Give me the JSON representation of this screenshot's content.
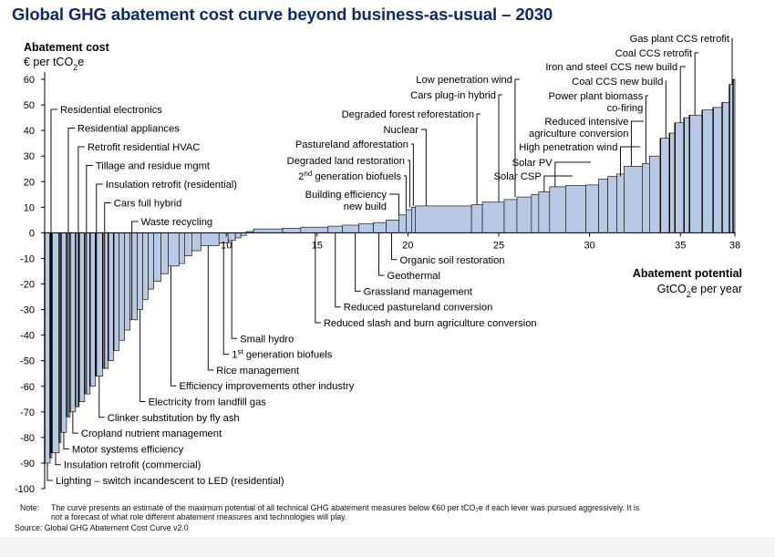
{
  "title": "Global GHG abatement cost curve beyond business-as-usual – 2030",
  "note_label": "Note:",
  "note_text": "The curve presents an estimate of the maximum potential of all technical GHG abatement measures below €60 per tCO₂e if each lever was pursued aggressively. It is not a forecast of what role different abatement measures and technologies will play.",
  "source": "Source: Global GHG Abatement Cost Curve v2.0",
  "colors": {
    "title": "#0d2b6b",
    "bar_fill": "#b8c9e6",
    "bar_stroke": "#1a1a1a"
  },
  "chart_data": {
    "type": "bar",
    "variant": "marginal-abatement-cost-curve",
    "ylabel_line1": "Abatement cost",
    "ylabel_line2_prefix": "€ per tCO",
    "ylabel_line2_sub": "2",
    "ylabel_line2_suffix": "e",
    "xlabel_line1": "Abatement potential",
    "xlabel_line2_prefix": "GtCO",
    "xlabel_line2_sub": "2",
    "xlabel_line2_suffix": "e per year",
    "ylim": [
      -100,
      60
    ],
    "xlim": [
      0,
      38
    ],
    "yticks": [
      60,
      50,
      40,
      30,
      20,
      10,
      0,
      -10,
      -20,
      -30,
      -40,
      -50,
      -60,
      -70,
      -80,
      -90,
      -100
    ],
    "xticks": [
      10,
      15,
      20,
      25,
      30,
      35,
      38
    ],
    "bars": [
      {
        "x0": 0.0,
        "x1": 0.3,
        "cost": -90
      },
      {
        "x0": 0.3,
        "x1": 0.4,
        "cost": -88
      },
      {
        "x0": 0.4,
        "x1": 0.8,
        "cost": -86
      },
      {
        "x0": 0.8,
        "x1": 0.9,
        "cost": -82
      },
      {
        "x0": 0.9,
        "x1": 1.2,
        "cost": -78
      },
      {
        "x0": 1.2,
        "x1": 1.4,
        "cost": -72
      },
      {
        "x0": 1.4,
        "x1": 1.7,
        "cost": -70
      },
      {
        "x0": 1.7,
        "x1": 1.9,
        "cost": -68
      },
      {
        "x0": 1.9,
        "x1": 2.2,
        "cost": -66
      },
      {
        "x0": 2.2,
        "x1": 2.5,
        "cost": -63
      },
      {
        "x0": 2.5,
        "x1": 2.8,
        "cost": -60
      },
      {
        "x0": 2.8,
        "x1": 3.2,
        "cost": -56
      },
      {
        "x0": 3.2,
        "x1": 3.5,
        "cost": -53
      },
      {
        "x0": 3.5,
        "x1": 3.8,
        "cost": -50
      },
      {
        "x0": 3.8,
        "x1": 4.1,
        "cost": -46
      },
      {
        "x0": 4.1,
        "x1": 4.4,
        "cost": -42
      },
      {
        "x0": 4.4,
        "x1": 4.7,
        "cost": -38
      },
      {
        "x0": 4.7,
        "x1": 5.1,
        "cost": -34
      },
      {
        "x0": 5.1,
        "x1": 5.4,
        "cost": -30
      },
      {
        "x0": 5.4,
        "x1": 5.7,
        "cost": -26
      },
      {
        "x0": 5.7,
        "x1": 6.0,
        "cost": -22
      },
      {
        "x0": 6.0,
        "x1": 6.4,
        "cost": -19
      },
      {
        "x0": 6.4,
        "x1": 6.8,
        "cost": -16
      },
      {
        "x0": 6.8,
        "x1": 7.4,
        "cost": -13
      },
      {
        "x0": 7.4,
        "x1": 7.7,
        "cost": -12
      },
      {
        "x0": 7.7,
        "x1": 8.1,
        "cost": -9
      },
      {
        "x0": 8.1,
        "x1": 8.6,
        "cost": -7
      },
      {
        "x0": 8.6,
        "x1": 9.6,
        "cost": -5
      },
      {
        "x0": 9.6,
        "x1": 10.1,
        "cost": -4
      },
      {
        "x0": 10.1,
        "x1": 10.5,
        "cost": -3
      },
      {
        "x0": 10.5,
        "x1": 10.8,
        "cost": -2
      },
      {
        "x0": 10.8,
        "x1": 11.1,
        "cost": -1
      },
      {
        "x0": 11.1,
        "x1": 11.5,
        "cost": 0.5
      },
      {
        "x0": 11.5,
        "x1": 13.1,
        "cost": 1.5
      },
      {
        "x0": 13.1,
        "x1": 14.1,
        "cost": 1.8
      },
      {
        "x0": 14.1,
        "x1": 15.6,
        "cost": 2.2
      },
      {
        "x0": 15.6,
        "x1": 16.4,
        "cost": 2.6
      },
      {
        "x0": 16.4,
        "x1": 17.3,
        "cost": 3
      },
      {
        "x0": 17.3,
        "x1": 18.1,
        "cost": 3.5
      },
      {
        "x0": 18.1,
        "x1": 18.8,
        "cost": 4
      },
      {
        "x0": 18.8,
        "x1": 19.5,
        "cost": 5
      },
      {
        "x0": 19.5,
        "x1": 19.9,
        "cost": 7
      },
      {
        "x0": 19.9,
        "x1": 20.2,
        "cost": 9
      },
      {
        "x0": 20.2,
        "x1": 20.4,
        "cost": 10
      },
      {
        "x0": 20.4,
        "x1": 23.5,
        "cost": 10.5
      },
      {
        "x0": 23.5,
        "x1": 24.1,
        "cost": 11
      },
      {
        "x0": 24.1,
        "x1": 25.3,
        "cost": 12
      },
      {
        "x0": 25.3,
        "x1": 26.0,
        "cost": 13
      },
      {
        "x0": 26.0,
        "x1": 26.8,
        "cost": 14
      },
      {
        "x0": 26.8,
        "x1": 27.2,
        "cost": 15
      },
      {
        "x0": 27.2,
        "x1": 27.8,
        "cost": 16
      },
      {
        "x0": 27.8,
        "x1": 28.7,
        "cost": 18
      },
      {
        "x0": 28.7,
        "x1": 29.8,
        "cost": 18.5
      },
      {
        "x0": 29.8,
        "x1": 30.5,
        "cost": 18.7
      },
      {
        "x0": 30.5,
        "x1": 31.0,
        "cost": 21
      },
      {
        "x0": 31.0,
        "x1": 31.5,
        "cost": 22
      },
      {
        "x0": 31.5,
        "x1": 31.9,
        "cost": 23
      },
      {
        "x0": 31.9,
        "x1": 32.9,
        "cost": 26
      },
      {
        "x0": 32.9,
        "x1": 33.3,
        "cost": 27
      },
      {
        "x0": 33.3,
        "x1": 33.9,
        "cost": 30
      },
      {
        "x0": 33.9,
        "x1": 34.4,
        "cost": 37
      },
      {
        "x0": 34.4,
        "x1": 34.7,
        "cost": 39
      },
      {
        "x0": 34.7,
        "x1": 35.2,
        "cost": 43
      },
      {
        "x0": 35.2,
        "x1": 35.5,
        "cost": 45
      },
      {
        "x0": 35.5,
        "x1": 36.2,
        "cost": 46
      },
      {
        "x0": 36.2,
        "x1": 36.8,
        "cost": 48
      },
      {
        "x0": 36.8,
        "x1": 37.3,
        "cost": 49
      },
      {
        "x0": 37.3,
        "x1": 37.7,
        "cost": 51
      },
      {
        "x0": 37.7,
        "x1": 37.9,
        "cost": 58
      },
      {
        "x0": 37.9,
        "x1": 38.0,
        "cost": 60
      }
    ],
    "labels_negative": [
      {
        "text": "Residential electronics",
        "x": 0.35,
        "cost": -86,
        "row": 1
      },
      {
        "text": "Residential appliances",
        "x": 1.3,
        "cost": -72,
        "row": 2
      },
      {
        "text": "Retrofit residential HVAC",
        "x": 1.85,
        "cost": -68,
        "row": 3
      },
      {
        "text": "Tillage and residue mgmt",
        "x": 2.3,
        "cost": -63,
        "row": 4
      },
      {
        "text": "Insulation retrofit (residential)",
        "x": 2.85,
        "cost": -56,
        "row": 5
      },
      {
        "text": "Cars full hybrid",
        "x": 3.3,
        "cost": -53,
        "row": 6
      },
      {
        "text": "Waste recycling",
        "x": 4.8,
        "cost": -34,
        "row": 7
      }
    ],
    "labels_negative_below": [
      {
        "text": "Lighting – switch incandescent to LED (residential)",
        "x": 0.15,
        "cost": -90,
        "row": 1
      },
      {
        "text": "Insulation retrofit (commercial)",
        "x": 0.6,
        "cost": -86,
        "row": 2
      },
      {
        "text": "Motor systems efficiency",
        "x": 1.05,
        "cost": -78,
        "row": 3
      },
      {
        "text": "Cropland nutrient management",
        "x": 1.55,
        "cost": -70,
        "row": 4
      },
      {
        "text": "Clinker substitution by fly ash",
        "x": 3.0,
        "cost": -56,
        "row": 5
      },
      {
        "text": "Electricity from landfill gas",
        "x": 5.25,
        "cost": -30,
        "row": 6
      },
      {
        "text": "Efficiency improvements other industry",
        "x": 6.95,
        "cost": -13,
        "row": 7
      },
      {
        "text": "Rice management",
        "x": 9.0,
        "cost": -5,
        "row": 8
      },
      {
        "text": "1st generation biofuels",
        "x": 9.85,
        "cost": -4,
        "row": 9
      },
      {
        "text": "Small hydro",
        "x": 10.3,
        "cost": -3,
        "row": 10
      },
      {
        "text": "Reduced slash and burn agriculture conversion",
        "x": 14.9,
        "cost": 2.2,
        "row": 11
      },
      {
        "text": "Reduced pastureland conversion",
        "x": 16.0,
        "cost": 2.6,
        "row": 12
      },
      {
        "text": "Grassland management",
        "x": 17.1,
        "cost": 3,
        "row": 13
      },
      {
        "text": "Geothermal",
        "x": 18.4,
        "cost": 4,
        "row": 14
      },
      {
        "text": "Organic soil restoration",
        "x": 19.1,
        "cost": 5,
        "row": 15
      }
    ],
    "labels_positive": [
      {
        "text": "Building efficiency",
        "text2": "new build",
        "x": 19.5,
        "cost": 7
      },
      {
        "text": "2nd generation biofuels",
        "x": 19.9,
        "cost": 9
      },
      {
        "text": "Degraded land restoration",
        "x": 20.1,
        "cost": 10
      },
      {
        "text": "Pastureland afforestation",
        "x": 20.3,
        "cost": 10.5
      },
      {
        "text": "Nuclear",
        "x": 21.0,
        "cost": 10.5
      },
      {
        "text": "Degraded forest reforestation",
        "x": 23.8,
        "cost": 11
      },
      {
        "text": "Cars plug-in hybrid",
        "x": 25.0,
        "cost": 12
      },
      {
        "text": "Low penetration wind",
        "x": 25.9,
        "cost": 14
      },
      {
        "text": "Solar CSP",
        "x": 27.5,
        "cost": 16
      },
      {
        "text": "Solar PV",
        "x": 28.1,
        "cost": 18
      },
      {
        "text": "High penetration wind",
        "x": 31.7,
        "cost": 22
      },
      {
        "text": "Reduced intensive",
        "text2": "agriculture conversion",
        "x": 32.3,
        "cost": 26
      },
      {
        "text": "Power plant biomass",
        "text2": "co-firing",
        "x": 33.1,
        "cost": 27
      },
      {
        "text": "Coal CCS new build",
        "x": 34.2,
        "cost": 37
      },
      {
        "text": "Iron and steel CCS new build",
        "x": 35.0,
        "cost": 43
      },
      {
        "text": "Coal CCS retrofit",
        "x": 35.8,
        "cost": 46
      },
      {
        "text": "Gas plant CCS retrofit",
        "x": 37.85,
        "cost": 58
      }
    ]
  }
}
